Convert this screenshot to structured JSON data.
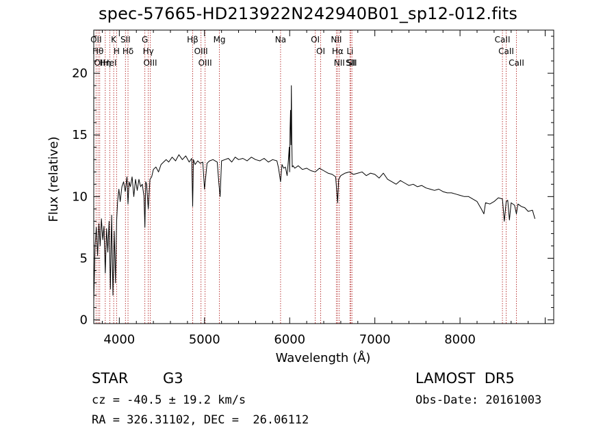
{
  "chart_data": {
    "type": "line",
    "title": "spec-57665-HD213922N242940B01_sp12-012.fits",
    "xlabel": "Wavelength (Å)",
    "ylabel": "Flux (relative)",
    "xlim": [
      3700,
      9100
    ],
    "ylim": [
      -0.3,
      23.5
    ],
    "xticks": [
      4000,
      5000,
      6000,
      7000,
      8000
    ],
    "yticks": [
      0,
      5,
      10,
      15,
      20
    ],
    "grid": false,
    "series": [
      {
        "x": [
          3700,
          3715,
          3730,
          3745,
          3760,
          3775,
          3790,
          3805,
          3820,
          3835,
          3850,
          3865,
          3880,
          3895,
          3910,
          3925,
          3940,
          3955,
          3968,
          3980,
          3995,
          4010,
          4030,
          4050,
          4070,
          4090,
          4102,
          4115,
          4130,
          4150,
          4170,
          4190,
          4210,
          4230,
          4250,
          4270,
          4290,
          4300,
          4310,
          4320,
          4340,
          4360,
          4380,
          4400,
          4430,
          4460,
          4490,
          4520,
          4550,
          4580,
          4620,
          4660,
          4700,
          4740,
          4780,
          4820,
          4850,
          4861,
          4870,
          4890,
          4920,
          4950,
          4980,
          5000,
          5030,
          5060,
          5100,
          5150,
          5170,
          5183,
          5200,
          5240,
          5280,
          5320,
          5360,
          5400,
          5450,
          5500,
          5550,
          5600,
          5650,
          5700,
          5750,
          5800,
          5850,
          5870,
          5893,
          5910,
          5930,
          5950,
          5970,
          5985,
          5995,
          6000,
          6005,
          6010,
          6015,
          6020,
          6025,
          6030,
          6040,
          6060,
          6100,
          6150,
          6200,
          6250,
          6300,
          6350,
          6400,
          6450,
          6500,
          6540,
          6563,
          6575,
          6600,
          6650,
          6700,
          6750,
          6800,
          6850,
          6900,
          6950,
          7000,
          7050,
          7100,
          7150,
          7200,
          7250,
          7300,
          7350,
          7400,
          7450,
          7500,
          7550,
          7600,
          7650,
          7700,
          7750,
          7800,
          7850,
          7900,
          7950,
          8000,
          8050,
          8100,
          8150,
          8200,
          8250,
          8280,
          8300,
          8350,
          8400,
          8450,
          8498,
          8520,
          8542,
          8560,
          8580,
          8600,
          8640,
          8662,
          8680,
          8720,
          8760,
          8800,
          8850,
          8880
        ],
        "y": [
          1.5,
          6.0,
          7.5,
          5.2,
          7.8,
          6.0,
          8.2,
          6.5,
          7.6,
          3.8,
          7.4,
          5.5,
          8.0,
          2.5,
          8.5,
          2.0,
          7.2,
          3.0,
          8.0,
          9.6,
          10.6,
          9.6,
          10.8,
          11.2,
          10.4,
          11.6,
          9.4,
          11.2,
          10.8,
          11.6,
          10.0,
          11.4,
          10.5,
          11.4,
          10.8,
          11.0,
          10.0,
          7.5,
          11.2,
          11.0,
          9.0,
          11.4,
          11.6,
          12.2,
          12.4,
          12.0,
          12.6,
          12.8,
          13.0,
          12.8,
          13.2,
          12.9,
          13.4,
          13.0,
          13.3,
          12.8,
          13.1,
          9.2,
          13.0,
          12.6,
          12.9,
          12.7,
          12.8,
          10.6,
          12.7,
          12.9,
          13.0,
          12.8,
          11.0,
          10.0,
          12.9,
          13.0,
          13.1,
          12.8,
          13.2,
          13.0,
          13.1,
          12.9,
          13.2,
          13.0,
          12.9,
          13.1,
          12.8,
          13.0,
          12.9,
          12.3,
          11.2,
          12.6,
          12.3,
          12.4,
          11.7,
          13.0,
          14.0,
          12.0,
          15.5,
          17.0,
          14.2,
          19.0,
          14.5,
          12.4,
          12.5,
          12.3,
          12.5,
          12.2,
          12.3,
          12.1,
          12.0,
          12.3,
          12.1,
          11.9,
          11.8,
          11.6,
          9.5,
          11.4,
          11.7,
          11.9,
          12.0,
          11.8,
          11.9,
          12.0,
          11.7,
          11.9,
          11.8,
          11.5,
          11.9,
          11.4,
          11.2,
          11.0,
          11.3,
          11.1,
          10.9,
          11.0,
          10.8,
          10.9,
          10.7,
          10.6,
          10.5,
          10.6,
          10.4,
          10.3,
          10.3,
          10.2,
          10.1,
          10.0,
          10.0,
          9.8,
          9.6,
          9.0,
          8.6,
          9.5,
          9.4,
          9.6,
          9.9,
          9.8,
          8.0,
          9.6,
          9.7,
          8.1,
          9.5,
          9.3,
          8.6,
          9.4,
          9.2,
          9.1,
          8.8,
          8.9,
          8.2
        ]
      }
    ],
    "lines": [
      {
        "x": 3727,
        "label": "OII"
      },
      {
        "x": 3750,
        "label": "Hθ"
      },
      {
        "x": 3770,
        "label": "OII"
      },
      {
        "x": 3835,
        "label": "Hη"
      },
      {
        "x": 3889,
        "label": "HeI"
      },
      {
        "x": 3934,
        "label": "K"
      },
      {
        "x": 3968,
        "label": "H"
      },
      {
        "x": 4072,
        "label": "SII"
      },
      {
        "x": 4102,
        "label": "Hδ"
      },
      {
        "x": 4300,
        "label": "G"
      },
      {
        "x": 4340,
        "label": "Hγ"
      },
      {
        "x": 4363,
        "label": "OIII"
      },
      {
        "x": 4861,
        "label": "Hβ"
      },
      {
        "x": 4959,
        "label": "OIII"
      },
      {
        "x": 5007,
        "label": "OIII"
      },
      {
        "x": 5175,
        "label": "Mg"
      },
      {
        "x": 5893,
        "label": "Na"
      },
      {
        "x": 6300,
        "label": "OI"
      },
      {
        "x": 6364,
        "label": "OI"
      },
      {
        "x": 6548,
        "label": "NII"
      },
      {
        "x": 6563,
        "label": "Hα"
      },
      {
        "x": 6583,
        "label": "NII"
      },
      {
        "x": 6708,
        "label": "Li"
      },
      {
        "x": 6716,
        "label": "SII"
      },
      {
        "x": 6731,
        "label": "SII"
      },
      {
        "x": 8498,
        "label": "CaII"
      },
      {
        "x": 8542,
        "label": "CaII"
      },
      {
        "x": 8662,
        "label": "CaII"
      }
    ]
  },
  "info": {
    "object_class": "STAR",
    "subclass": "G3",
    "survey": "LAMOST  DR5",
    "velocity": "cz = -40.5 ± 19.2 km/s",
    "obs_date": "Obs-Date: 20161003",
    "coords": "RA = 326.31102, DEC =  26.06112"
  },
  "colors": {
    "line_marker": "#b22222",
    "spectrum": "#000000",
    "axis": "#000000"
  }
}
